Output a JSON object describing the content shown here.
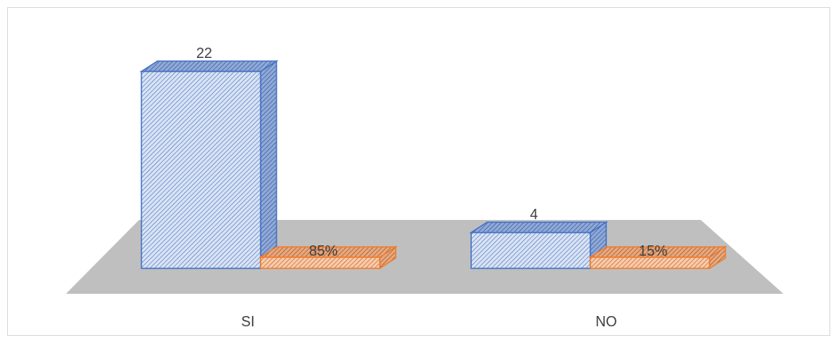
{
  "chart_data": {
    "type": "bar",
    "categories": [
      "SI",
      "NO"
    ],
    "series": [
      {
        "values": [
          22,
          4
        ],
        "data_labels": [
          "22",
          "4"
        ]
      },
      {
        "values": [
          85,
          15
        ],
        "data_labels": [
          "85%",
          "15%"
        ]
      }
    ],
    "ylim": [
      0,
      22
    ],
    "grid": false,
    "legend": "none",
    "colors": {
      "series_1_fill": "#dae3f3",
      "series_1_stroke": "#4472c4",
      "series_1_hatch": "#4472c4",
      "series_2_fill": "#f8cbad",
      "series_2_stroke": "#ed7d31",
      "series_2_hatch": "#c55a11",
      "floor": "#bfbfbf"
    }
  }
}
